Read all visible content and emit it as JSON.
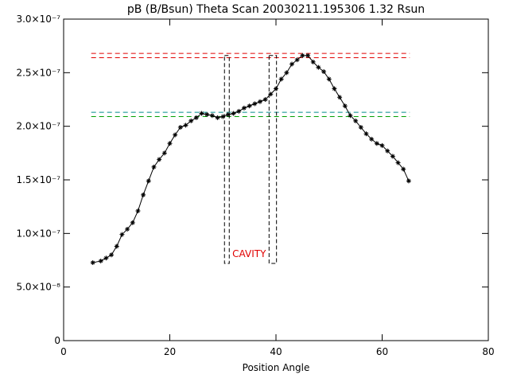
{
  "chart_data": {
    "type": "line",
    "title": "pB (B/Bsun) Theta Scan 20030211.195306 1.32 Rsun",
    "x_label": "Position Angle",
    "xlim": [
      0,
      80
    ],
    "xticks": [
      0,
      20,
      40,
      60,
      80
    ],
    "ylim": [
      0,
      3e-07
    ],
    "yticks": [
      0,
      {
        "value": 5e-08,
        "label": "5.0×10⁻⁸"
      },
      {
        "value": 1e-07,
        "label": "1.0×10⁻⁷"
      },
      {
        "value": 1.5e-07,
        "label": "1.5×10⁻⁷"
      },
      {
        "value": 2e-07,
        "label": "2.0×10⁻⁷"
      },
      {
        "value": 2.5e-07,
        "label": "2.5×10⁻⁷"
      },
      {
        "value": 3e-07,
        "label": "3.0×10⁻⁷"
      }
    ],
    "x": [
      5.5,
      7,
      8,
      9,
      10,
      11,
      12,
      13,
      14,
      15,
      16,
      17,
      18,
      19,
      20,
      21,
      22,
      23,
      24,
      25,
      26,
      27,
      28,
      29,
      30,
      31,
      32,
      33,
      34,
      35,
      36,
      37,
      38,
      39,
      40,
      41,
      42,
      43,
      44,
      45,
      46,
      47,
      48,
      49,
      50,
      51,
      52,
      53,
      54,
      55,
      56,
      57,
      58,
      59,
      60,
      61,
      62,
      63,
      64,
      65
    ],
    "series": [
      {
        "color": "#000000",
        "values": [
          7.28e-08,
          7.43e-08,
          7.7e-08,
          8e-08,
          8.8e-08,
          9.9e-08,
          1.04e-07,
          1.1e-07,
          1.21e-07,
          1.36e-07,
          1.49e-07,
          1.62e-07,
          1.69e-07,
          1.75e-07,
          1.84e-07,
          1.92e-07,
          1.99e-07,
          2.01e-07,
          2.05e-07,
          2.08e-07,
          2.12e-07,
          2.11e-07,
          2.1e-07,
          2.08e-07,
          2.09e-07,
          2.11e-07,
          2.12e-07,
          2.14e-07,
          2.17e-07,
          2.19e-07,
          2.21e-07,
          2.23e-07,
          2.25e-07,
          2.3e-07,
          2.35e-07,
          2.44e-07,
          2.5e-07,
          2.58e-07,
          2.62e-07,
          2.66e-07,
          2.66e-07,
          2.6e-07,
          2.55e-07,
          2.51e-07,
          2.44e-07,
          2.35e-07,
          2.27e-07,
          2.19e-07,
          2.1e-07,
          2.05e-07,
          1.99e-07,
          1.93e-07,
          1.88e-07,
          1.84e-07,
          1.82e-07,
          1.77e-07,
          1.72e-07,
          1.66e-07,
          1.6e-07,
          1.49e-07
        ]
      }
    ],
    "reference_lines": [
      {
        "y": 2.68e-07,
        "x": [
          5.2,
          65.2
        ],
        "color": "#e00000"
      },
      {
        "y": 2.64e-07,
        "x": [
          5.2,
          65.2
        ],
        "color": "#e00000"
      },
      {
        "y": 2.13e-07,
        "x": [
          5.2,
          65.2
        ],
        "color": "#008c8c"
      },
      {
        "y": 2.09e-07,
        "x": [
          5.2,
          65.2
        ],
        "color": "#00a000"
      }
    ],
    "regions": [
      {
        "x": [
          30.3,
          31.2
        ],
        "y": [
          7.2e-08,
          2.66e-07
        ]
      },
      {
        "x": [
          38.7,
          40.1
        ],
        "y": [
          7.2e-08,
          2.66e-07
        ]
      }
    ],
    "annotation": {
      "text": "CAVITY",
      "color": "#e00000"
    }
  }
}
